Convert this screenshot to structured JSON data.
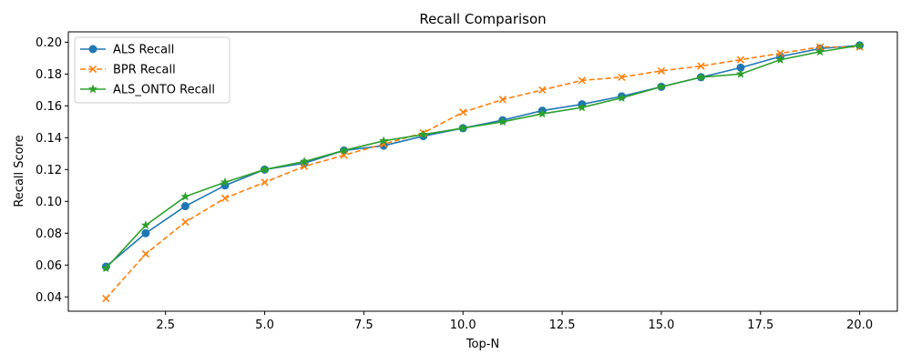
{
  "chart_data": {
    "type": "line",
    "title": "Recall Comparison",
    "xlabel": "Top-N",
    "ylabel": "Recall Score",
    "xlim": [
      0.05,
      20.95
    ],
    "ylim": [
      0.031,
      0.2065
    ],
    "xticks": [
      2.5,
      5.0,
      7.5,
      10.0,
      12.5,
      15.0,
      17.5,
      20.0
    ],
    "xtick_labels": [
      "2.5",
      "5.0",
      "7.5",
      "10.0",
      "12.5",
      "15.0",
      "17.5",
      "20.0"
    ],
    "yticks": [
      0.04,
      0.06,
      0.08,
      0.1,
      0.12,
      0.14,
      0.16,
      0.18,
      0.2
    ],
    "ytick_labels": [
      "0.04",
      "0.06",
      "0.08",
      "0.10",
      "0.12",
      "0.14",
      "0.16",
      "0.18",
      "0.20"
    ],
    "grid": false,
    "legend_position": "upper-left",
    "x": [
      1,
      2,
      3,
      4,
      5,
      6,
      7,
      8,
      9,
      10,
      11,
      12,
      13,
      14,
      15,
      16,
      17,
      18,
      19,
      20
    ],
    "series": [
      {
        "name": "ALS Recall",
        "color": "#1f77b4",
        "marker": "circle",
        "linestyle": "solid",
        "values": [
          0.059,
          0.08,
          0.097,
          0.11,
          0.12,
          0.124,
          0.132,
          0.135,
          0.141,
          0.146,
          0.151,
          0.157,
          0.161,
          0.166,
          0.172,
          0.178,
          0.184,
          0.191,
          0.196,
          0.198
        ]
      },
      {
        "name": "BPR Recall",
        "color": "#ff7f0e",
        "marker": "x",
        "linestyle": "dashed",
        "values": [
          0.039,
          0.067,
          0.087,
          0.102,
          0.112,
          0.122,
          0.129,
          0.136,
          0.143,
          0.156,
          0.164,
          0.17,
          0.176,
          0.178,
          0.182,
          0.185,
          0.189,
          0.193,
          0.197,
          0.197
        ]
      },
      {
        "name": "ALS_ONTO Recall",
        "color": "#2ca02c",
        "marker": "star",
        "linestyle": "solid",
        "values": [
          0.058,
          0.085,
          0.103,
          0.112,
          0.12,
          0.125,
          0.132,
          0.138,
          0.142,
          0.146,
          0.15,
          0.155,
          0.159,
          0.165,
          0.172,
          0.178,
          0.18,
          0.189,
          0.194,
          0.198
        ]
      }
    ]
  }
}
